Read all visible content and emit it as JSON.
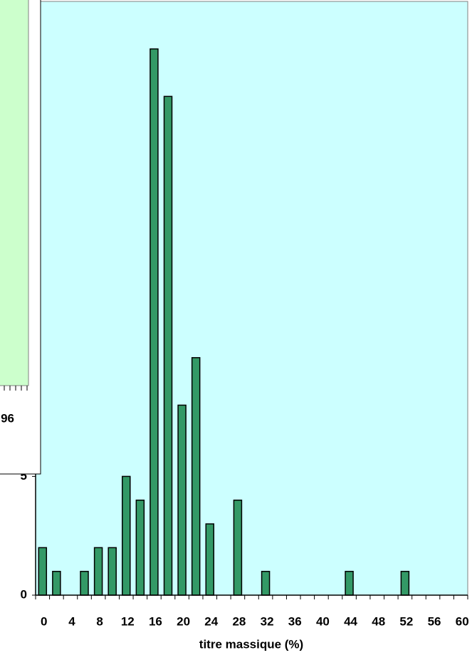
{
  "chart_data": {
    "type": "bar",
    "x_label": "titre massique (%)",
    "categories": [
      0,
      null,
      4,
      null,
      8,
      null,
      12,
      null,
      16,
      null,
      20,
      null,
      24,
      null,
      28,
      null,
      32,
      null,
      36,
      null,
      40,
      null,
      44,
      null,
      48,
      null,
      52,
      null,
      56,
      null,
      60
    ],
    "values": [
      2,
      1,
      0,
      1,
      2,
      2,
      5,
      4,
      23,
      21,
      8,
      10,
      3,
      0,
      4,
      0,
      1,
      0,
      0,
      0,
      0,
      0,
      1,
      0,
      0,
      0,
      1,
      0,
      0,
      0,
      0
    ],
    "color": "#339966",
    "background": "#ccffff",
    "ylim": [
      0,
      25
    ],
    "yticks": [
      0,
      5
    ],
    "inset_label": "96"
  }
}
